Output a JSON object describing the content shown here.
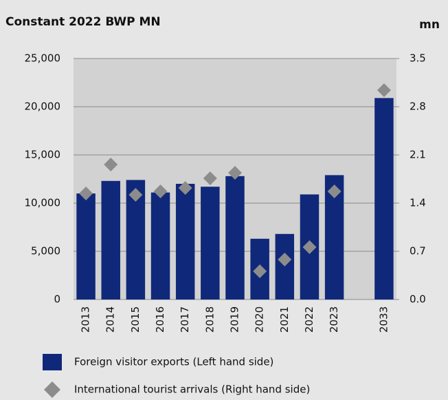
{
  "chart_data": {
    "type": "bar",
    "title": "Constant 2022 BWP MN",
    "y2_label": "mn",
    "categories": [
      "2013",
      "2014",
      "2015",
      "2016",
      "2017",
      "2018",
      "2019",
      "2020",
      "2021",
      "2022",
      "2023",
      null,
      "2033"
    ],
    "series": [
      {
        "name": "Foreign visitor exports (Left hand side)",
        "color": "#10287a",
        "type": "bar",
        "values": [
          11000,
          12300,
          12400,
          11100,
          12000,
          11700,
          12800,
          6300,
          6800,
          10900,
          12900,
          null,
          20900
        ]
      },
      {
        "name": "International tourist arrivals (Right hand side)",
        "color": "#8c8c8c",
        "type": "scatter",
        "axis": "y2",
        "values": [
          1.54,
          1.96,
          1.52,
          1.57,
          1.62,
          1.76,
          1.84,
          0.41,
          0.58,
          0.76,
          1.57,
          null,
          3.04
        ]
      }
    ],
    "ylim": [
      0,
      25000
    ],
    "yticks": [
      0,
      {
        "value": 5000,
        "label": "5,000"
      },
      {
        "value": 10000,
        "label": "10,000"
      },
      {
        "value": 15000,
        "label": "15,000"
      },
      {
        "value": 20000,
        "label": "20,000"
      },
      {
        "value": 25000,
        "label": "25,000"
      }
    ],
    "y2lim": [
      0,
      3.5
    ],
    "y2ticks": [
      {
        "value": 0,
        "label": "0.0"
      },
      0.7,
      1.4,
      2.1,
      2.8,
      3.5
    ],
    "grid": true
  }
}
